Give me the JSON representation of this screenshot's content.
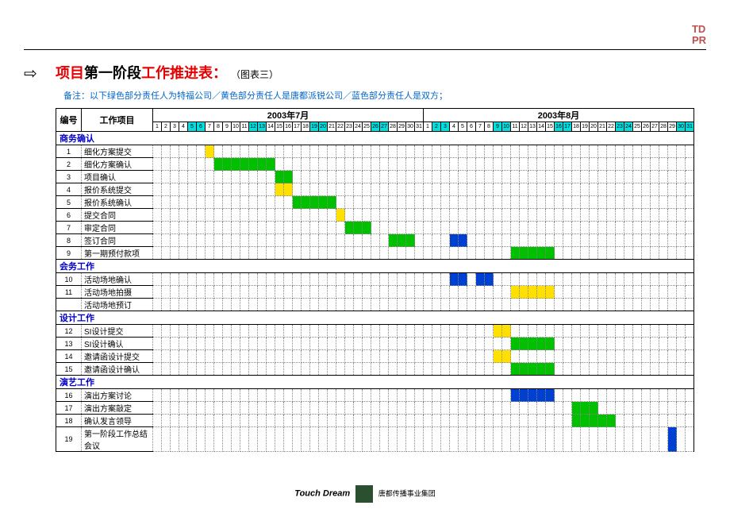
{
  "logo": {
    "line1": "TD",
    "line2": "PR"
  },
  "title": {
    "prefix": "项目",
    "mid": "第一阶段",
    "suffix": "工作推进表：",
    "sub": "（图表三）"
  },
  "note": "备注：以下绿色部分责任人为特福公司／黄色部分责任人是唐都派锐公司／蓝色部分责任人是双方；",
  "header": {
    "id": "编号",
    "task": "工作项目",
    "month1": "2003年7月",
    "month2": "2003年8月"
  },
  "jul_days": [
    1,
    2,
    3,
    4,
    5,
    6,
    7,
    8,
    9,
    10,
    11,
    12,
    13,
    14,
    15,
    16,
    17,
    18,
    19,
    20,
    21,
    22,
    23,
    24,
    25,
    26,
    27,
    28,
    29,
    30,
    31
  ],
  "aug_days": [
    1,
    2,
    3,
    4,
    5,
    6,
    7,
    8,
    9,
    10,
    11,
    12,
    13,
    14,
    15,
    16,
    17,
    18,
    19,
    20,
    21,
    22,
    23,
    24,
    25,
    26,
    27,
    28,
    29,
    30,
    31
  ],
  "jul_cyan": [
    5,
    6,
    12,
    13,
    19,
    20,
    26,
    27
  ],
  "aug_cyan": [
    2,
    3,
    9,
    10,
    16,
    17,
    23,
    24,
    30,
    31
  ],
  "colors": {
    "green": "#00c000",
    "yellow": "#ffe000",
    "blue": "#0040d0",
    "cyan": "#00e0e0"
  },
  "sections": [
    {
      "name": "商务确认",
      "rows": [
        {
          "id": 1,
          "task": "细化方案提交",
          "bars": [
            {
              "m": 7,
              "d": 7,
              "len": 1,
              "c": "y"
            }
          ]
        },
        {
          "id": 2,
          "task": "细化方案确认",
          "bars": [
            {
              "m": 7,
              "d": 8,
              "len": 7,
              "c": "g"
            }
          ]
        },
        {
          "id": 3,
          "task": "项目确认",
          "bars": [
            {
              "m": 7,
              "d": 15,
              "len": 2,
              "c": "g"
            }
          ]
        },
        {
          "id": 4,
          "task": "报价系统提交",
          "bars": [
            {
              "m": 7,
              "d": 15,
              "len": 2,
              "c": "y"
            }
          ]
        },
        {
          "id": 5,
          "task": "报价系统确认",
          "bars": [
            {
              "m": 7,
              "d": 17,
              "len": 5,
              "c": "g"
            }
          ]
        },
        {
          "id": 6,
          "task": "提交合同",
          "bars": [
            {
              "m": 7,
              "d": 22,
              "len": 1,
              "c": "y"
            }
          ]
        },
        {
          "id": 7,
          "task": "审定合同",
          "bars": [
            {
              "m": 7,
              "d": 23,
              "len": 3,
              "c": "g"
            }
          ]
        },
        {
          "id": 8,
          "task": "签订合同",
          "bars": [
            {
              "m": 7,
              "d": 28,
              "len": 3,
              "c": "g"
            },
            {
              "m": 8,
              "d": 4,
              "len": 2,
              "c": "b"
            }
          ]
        },
        {
          "id": 9,
          "task": "第一期预付款项",
          "bars": [
            {
              "m": 8,
              "d": 11,
              "len": 5,
              "c": "g"
            }
          ]
        }
      ]
    },
    {
      "name": "会务工作",
      "rows": [
        {
          "id": 10,
          "task": "活动场地确认",
          "bars": [
            {
              "m": 8,
              "d": 4,
              "len": 2,
              "c": "b"
            },
            {
              "m": 8,
              "d": 7,
              "len": 2,
              "c": "b"
            }
          ]
        },
        {
          "id": 11,
          "task": "活动场地拍摄",
          "bars": [
            {
              "m": 8,
              "d": 11,
              "len": 5,
              "c": "y"
            }
          ]
        },
        {
          "id": "",
          "task": "活动场地预订",
          "bars": []
        }
      ]
    },
    {
      "name": "设计工作",
      "rows": [
        {
          "id": 12,
          "task": "SI设计提交",
          "bars": [
            {
              "m": 8,
              "d": 9,
              "len": 2,
              "c": "y"
            }
          ]
        },
        {
          "id": 13,
          "task": "SI设计确认",
          "bars": [
            {
              "m": 8,
              "d": 11,
              "len": 5,
              "c": "g"
            }
          ]
        },
        {
          "id": 14,
          "task": "邀请函设计提交",
          "bars": [
            {
              "m": 8,
              "d": 9,
              "len": 2,
              "c": "y"
            }
          ]
        },
        {
          "id": 15,
          "task": "邀请函设计确认",
          "bars": [
            {
              "m": 8,
              "d": 11,
              "len": 5,
              "c": "g"
            }
          ]
        }
      ]
    },
    {
      "name": "演艺工作",
      "rows": [
        {
          "id": 16,
          "task": "演出方案讨论",
          "bars": [
            {
              "m": 8,
              "d": 11,
              "len": 5,
              "c": "b"
            }
          ]
        },
        {
          "id": 17,
          "task": "演出方案敲定",
          "bars": [
            {
              "m": 8,
              "d": 18,
              "len": 3,
              "c": "g"
            }
          ]
        },
        {
          "id": 18,
          "task": "确认发言领导",
          "bars": [
            {
              "m": 8,
              "d": 18,
              "len": 5,
              "c": "g"
            }
          ]
        },
        {
          "id": 19,
          "task": "第一阶段工作总结会议",
          "bars": [
            {
              "m": 8,
              "d": 29,
              "len": 1,
              "c": "b"
            }
          ]
        }
      ]
    }
  ],
  "footer": {
    "touch": "Touch Dream",
    "cn": "唐都传播事业集团"
  }
}
